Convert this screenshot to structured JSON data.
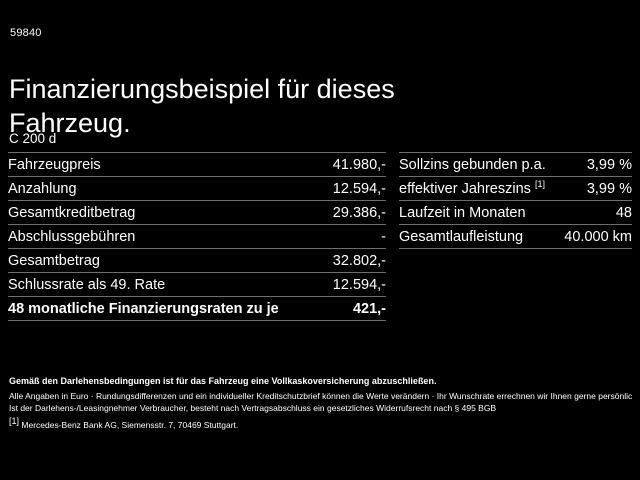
{
  "header": {
    "vehicle_id": "59840",
    "title_line1": "Finanzierungsbeispiel für dieses",
    "title_line2": "Fahrzeug.",
    "model": "C 200 d"
  },
  "financing_table": {
    "rows": [
      {
        "label": "Fahrzeugpreis",
        "value": "41.980,-"
      },
      {
        "label": "Anzahlung",
        "value": "12.594,-"
      },
      {
        "label": "Gesamtkreditbetrag",
        "value": "29.386,-"
      },
      {
        "label": "Abschlussgebühren",
        "value": "-"
      },
      {
        "label": "Gesamtbetrag",
        "value": "32.802,-"
      },
      {
        "label": "Schlussrate als 49. Rate",
        "value": "12.594,-"
      },
      {
        "label": "48 monatliche Finanzierungsraten zu je",
        "value": "421,-"
      }
    ]
  },
  "conditions_table": {
    "rows": [
      {
        "label": "Sollzins gebunden p.a.",
        "value": "3,99 %"
      },
      {
        "label": "effektiver Jahreszins",
        "footnote": "[1]",
        "value": "3,99 %"
      },
      {
        "label": "Laufzeit in Monaten",
        "value": "48"
      },
      {
        "label": "Gesamtlaufleistung",
        "value": "40.000 km"
      }
    ]
  },
  "footer": {
    "line1": "Gemäß den Darlehensbedingungen ist für das Fahrzeug eine Vollkaskoversicherung abzuschließen.",
    "line2": "Alle Angaben in Euro · Rundungsdifferenzen und ein individueller Kreditschutzbrief können die Werte verändern · Ihr Wunschrate errechnen wir Ihnen gerne persönlich",
    "line3": "Ist der Darlehens-/Leasingnehmer Verbraucher, besteht nach Vertragsabschluss ein gesetzliches Widerrufsrecht nach § 495 BGB",
    "footnote_marker": "[1]",
    "line4": "Mercedes-Benz Bank AG, Siemensstr. 7, 70469 Stuttgart."
  },
  "colors": {
    "background": "#000000",
    "text": "#ffffff",
    "divider": "#6f6f6f"
  }
}
